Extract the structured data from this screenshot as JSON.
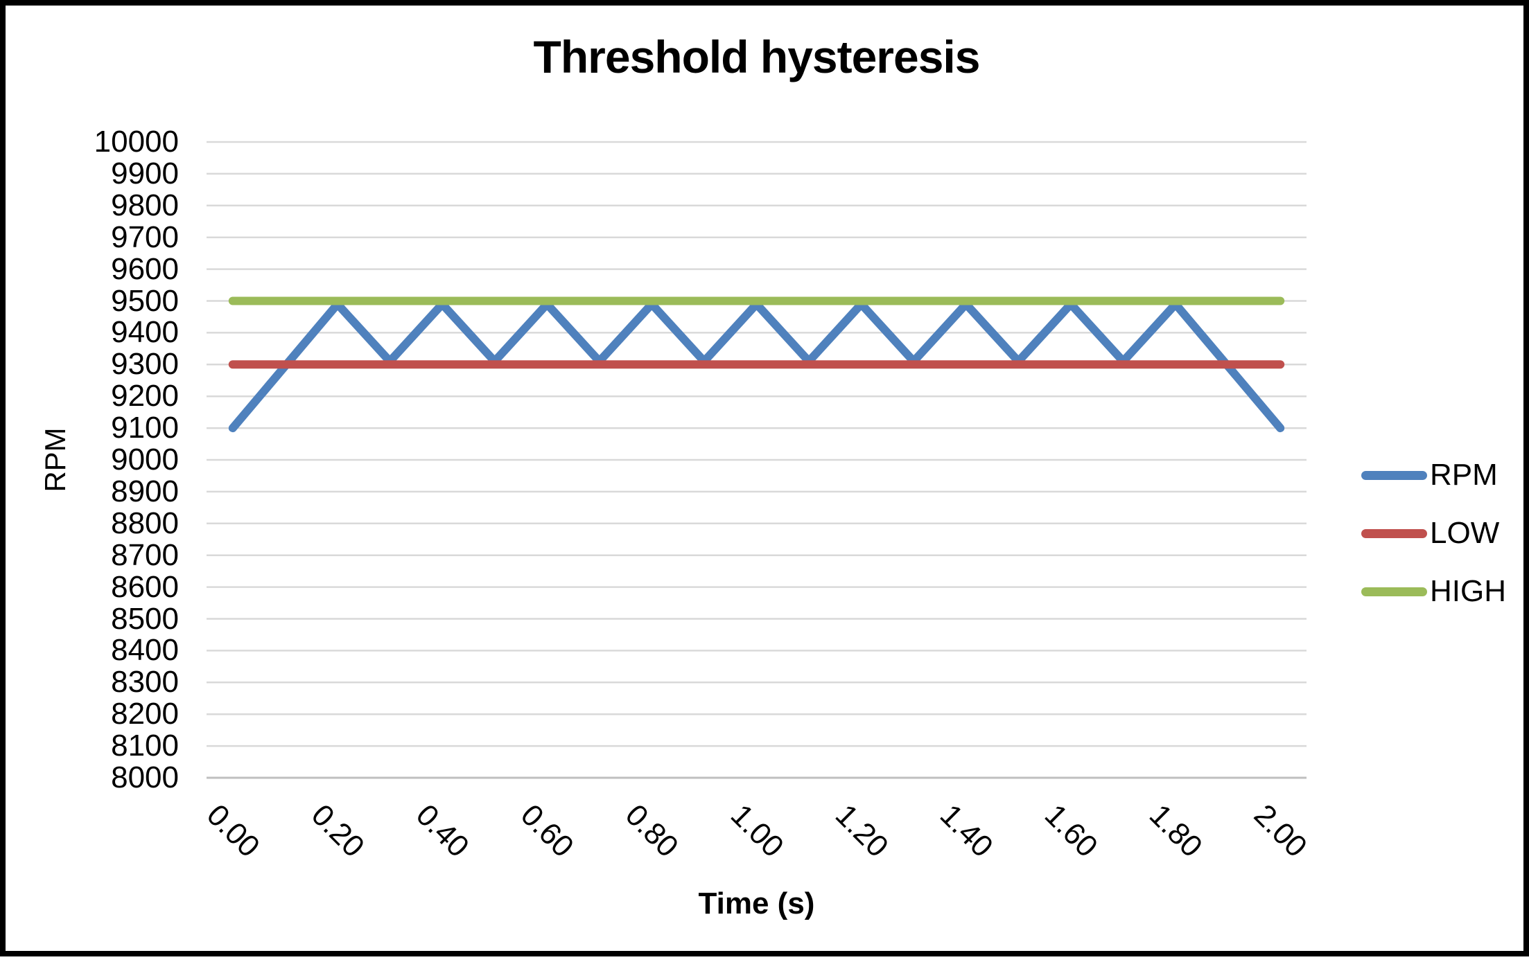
{
  "chart_data": {
    "type": "line",
    "title": "Threshold hysteresis",
    "xlabel": "Time (s)",
    "ylabel": "RPM",
    "x": [
      0.0,
      0.1,
      0.2,
      0.3,
      0.4,
      0.5,
      0.6,
      0.7,
      0.8,
      0.9,
      1.0,
      1.1,
      1.2,
      1.3,
      1.4,
      1.5,
      1.6,
      1.7,
      1.8,
      1.9,
      2.0
    ],
    "xtick_labels": [
      "0.00",
      "0.20",
      "0.40",
      "0.60",
      "0.80",
      "1.00",
      "1.20",
      "1.40",
      "1.60",
      "1.80",
      "2.00"
    ],
    "ylim": [
      8000,
      10000
    ],
    "ytick_step": 100,
    "grid": true,
    "legend_position": "right",
    "series": [
      {
        "name": "RPM",
        "color": "#4F81BD",
        "values": [
          9100,
          9295,
          9490,
          9310,
          9490,
          9310,
          9490,
          9310,
          9490,
          9310,
          9490,
          9310,
          9490,
          9310,
          9490,
          9310,
          9490,
          9310,
          9490,
          9295,
          9100
        ]
      },
      {
        "name": "LOW",
        "color": "#C0504D",
        "values": [
          9300,
          9300,
          9300,
          9300,
          9300,
          9300,
          9300,
          9300,
          9300,
          9300,
          9300,
          9300,
          9300,
          9300,
          9300,
          9300,
          9300,
          9300,
          9300,
          9300,
          9300
        ]
      },
      {
        "name": "HIGH",
        "color": "#9BBB59",
        "values": [
          9500,
          9500,
          9500,
          9500,
          9500,
          9500,
          9500,
          9500,
          9500,
          9500,
          9500,
          9500,
          9500,
          9500,
          9500,
          9500,
          9500,
          9500,
          9500,
          9500,
          9500
        ]
      }
    ],
    "colors": {
      "gridline": "#D9D9D9",
      "axis_line": "#BFBFBF"
    }
  }
}
